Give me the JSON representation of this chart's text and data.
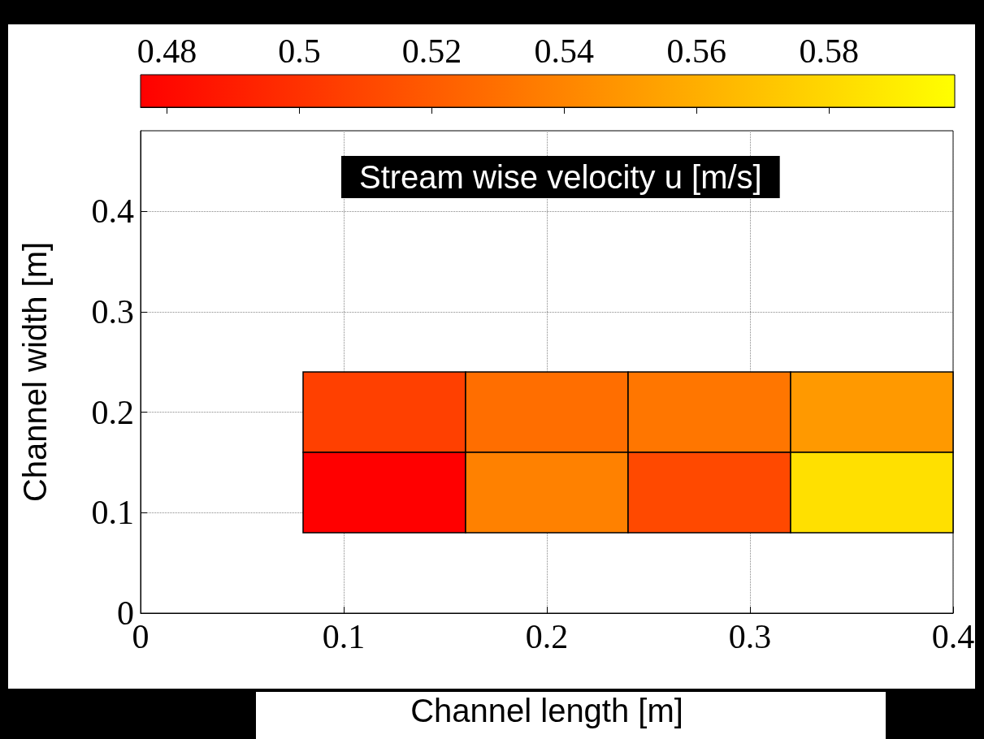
{
  "chart_data": {
    "type": "heatmap",
    "clabel": "Stream wise velocity u [m/s]",
    "xlabel": "Channel length [m]",
    "ylabel": "Channel width [m]",
    "x": [
      0.12,
      0.2,
      0.28,
      0.36
    ],
    "y": [
      0.2,
      0.12
    ],
    "cells": [
      [
        0.507,
        0.529,
        0.533,
        0.55
      ],
      [
        0.476,
        0.538,
        0.511,
        0.584
      ]
    ],
    "clim": [
      0.476,
      0.599
    ],
    "cticks": [
      0.48,
      0.5,
      0.52,
      0.54,
      0.56,
      0.58
    ],
    "xlim": [
      0,
      0.4
    ],
    "xticks": [
      0,
      0.1,
      0.2,
      0.3,
      0.4
    ],
    "ylim": [
      0,
      0.48
    ],
    "yticks": [
      0,
      0.1,
      0.2,
      0.3,
      0.4
    ],
    "grid": true
  }
}
